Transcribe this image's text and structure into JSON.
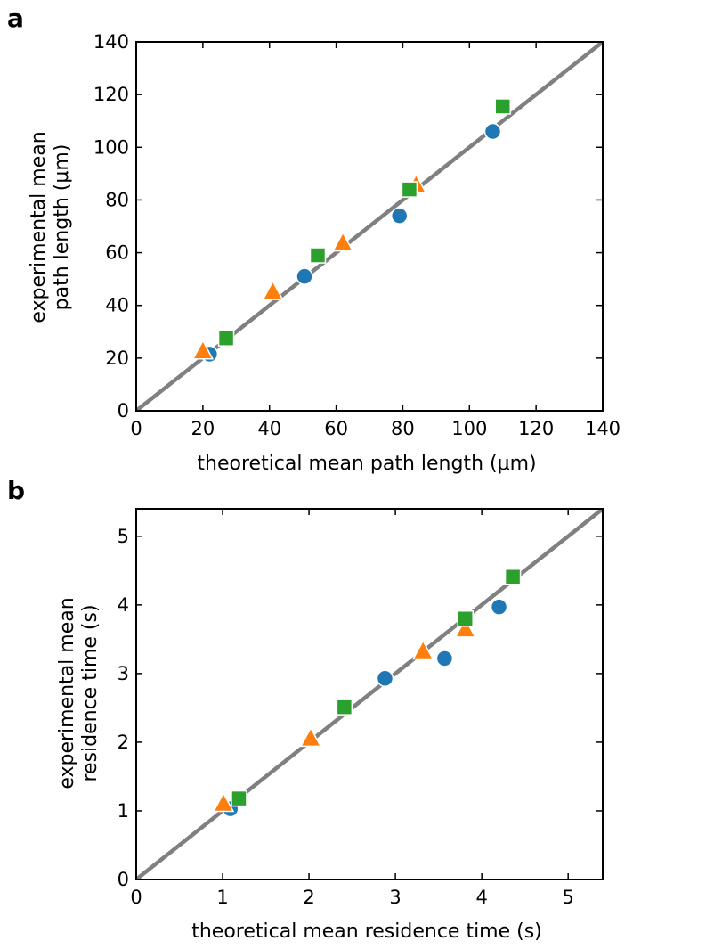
{
  "colors": {
    "identity_line": "#808080",
    "circle": "#1f77b4",
    "triangle": "#ff7f0e",
    "square": "#2ca02c",
    "marker_edge": "#ffffff",
    "axes": "#000000"
  },
  "chart_data": [
    {
      "panel": "a",
      "type": "scatter",
      "xlabel": "theoretical mean path length (μm)",
      "ylabel_lines": [
        "experimental mean",
        "path length (μm)"
      ],
      "xlim": [
        0,
        140
      ],
      "ylim": [
        0,
        140
      ],
      "xticks": [
        0,
        20,
        40,
        60,
        80,
        100,
        120,
        140
      ],
      "yticks": [
        0,
        20,
        40,
        60,
        80,
        100,
        120,
        140
      ],
      "grid": false,
      "identity_line": {
        "from": [
          0,
          0
        ],
        "to": [
          140,
          140
        ]
      },
      "series": [
        {
          "name": "circles",
          "marker": "circle",
          "points": [
            [
              22,
              21.5
            ],
            [
              50.5,
              51
            ],
            [
              79,
              74
            ],
            [
              107,
              106
            ]
          ]
        },
        {
          "name": "triangles",
          "marker": "triangle",
          "points": [
            [
              20,
              22.5
            ],
            [
              41,
              45
            ],
            [
              62,
              63.5
            ],
            [
              84,
              85.5
            ]
          ]
        },
        {
          "name": "squares",
          "marker": "square",
          "points": [
            [
              27,
              27.5
            ],
            [
              54.5,
              59
            ],
            [
              82,
              84
            ],
            [
              110,
              115.5
            ]
          ]
        }
      ]
    },
    {
      "panel": "b",
      "type": "scatter",
      "xlabel": "theoretical mean residence time  (s)",
      "ylabel_lines": [
        "experimental mean",
        "residence time  (s)"
      ],
      "xlim": [
        0,
        5.4
      ],
      "ylim": [
        0,
        5.4
      ],
      "xticks": [
        0,
        1,
        2,
        3,
        4,
        5
      ],
      "yticks": [
        0,
        1,
        2,
        3,
        4,
        5
      ],
      "grid": false,
      "identity_line": {
        "from": [
          0,
          0
        ],
        "to": [
          5.4,
          5.4
        ]
      },
      "series": [
        {
          "name": "circles",
          "marker": "circle",
          "points": [
            [
              1.09,
              1.03
            ],
            [
              2.88,
              2.93
            ],
            [
              3.57,
              3.22
            ],
            [
              4.2,
              3.97
            ]
          ]
        },
        {
          "name": "triangles",
          "marker": "triangle",
          "points": [
            [
              1.01,
              1.1
            ],
            [
              2.02,
              2.05
            ],
            [
              3.32,
              3.32
            ],
            [
              3.81,
              3.64
            ]
          ]
        },
        {
          "name": "squares",
          "marker": "square",
          "points": [
            [
              1.19,
              1.18
            ],
            [
              2.41,
              2.51
            ],
            [
              3.81,
              3.8
            ],
            [
              4.36,
              4.41
            ]
          ]
        }
      ]
    }
  ]
}
